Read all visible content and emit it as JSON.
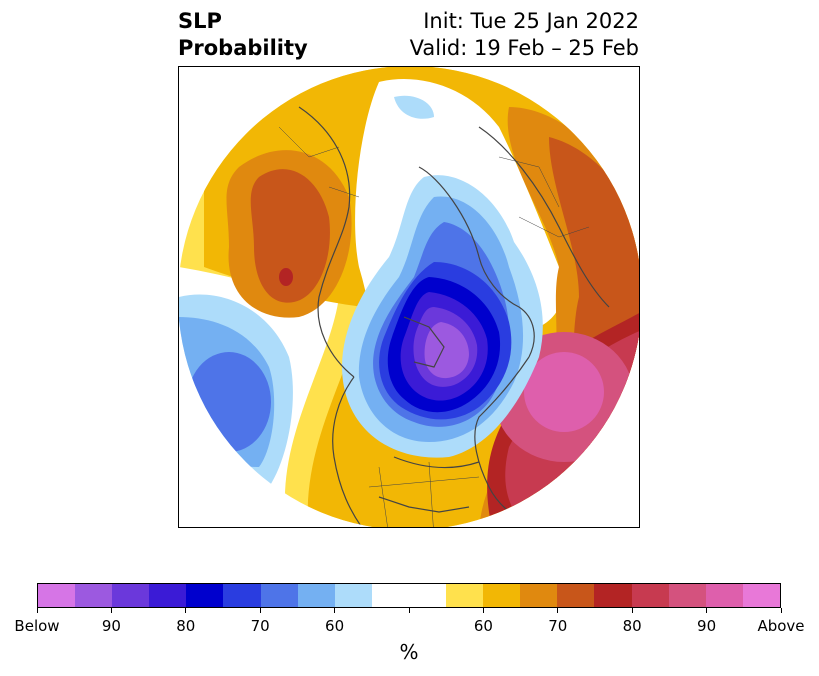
{
  "header": {
    "title_line1": "SLP",
    "title_line2": "Probability",
    "init_text": "Init: Tue 25 Jan 2022",
    "valid_text": "Valid: 19 Feb – 25 Feb"
  },
  "map": {
    "projection": "north-polar stereographic",
    "coastline_color": "#444444"
  },
  "colorbar": {
    "unit": "%",
    "segments": [
      {
        "category": "Below",
        "color": "#d675e6"
      },
      {
        "category": "Below",
        "color": "#9c59e0"
      },
      {
        "category": "Below",
        "color": "#6b38db"
      },
      {
        "category": "Below",
        "color": "#3b1bd6"
      },
      {
        "category": "Below",
        "color": "#0000cd"
      },
      {
        "category": "Below",
        "color": "#2a3de0"
      },
      {
        "category": "Below",
        "color": "#4e74e8"
      },
      {
        "category": "Below",
        "color": "#74b0f2"
      },
      {
        "category": "Below",
        "color": "#addcfa"
      },
      {
        "category": "Neutral",
        "color": "#ffffff"
      },
      {
        "category": "Neutral",
        "color": "#ffffff"
      },
      {
        "category": "Above",
        "color": "#ffe14d"
      },
      {
        "category": "Above",
        "color": "#f2b705"
      },
      {
        "category": "Above",
        "color": "#e0890f"
      },
      {
        "category": "Above",
        "color": "#c8561a"
      },
      {
        "category": "Above",
        "color": "#b32424"
      },
      {
        "category": "Above",
        "color": "#c73a50"
      },
      {
        "category": "Above",
        "color": "#d4527e"
      },
      {
        "category": "Above",
        "color": "#de5fac"
      },
      {
        "category": "Above",
        "color": "#e878d8"
      }
    ],
    "tick_labels": [
      "Below",
      "90",
      "80",
      "70",
      "60",
      "",
      "60",
      "70",
      "80",
      "90",
      "Above"
    ]
  }
}
